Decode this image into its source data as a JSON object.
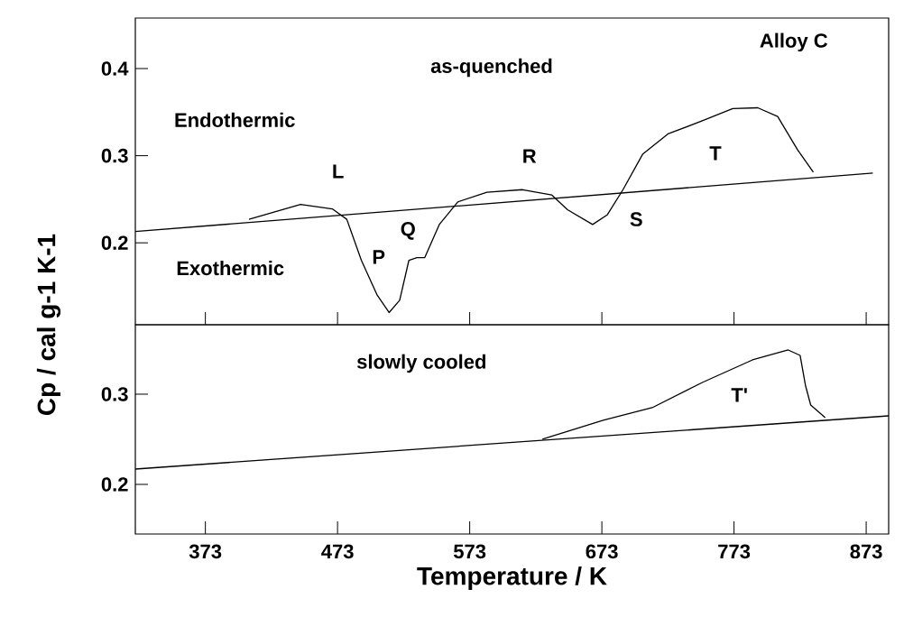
{
  "chart_data": [
    {
      "type": "line",
      "ylabel": "Cp / cal g-1 K-1",
      "xlim": [
        320,
        890
      ],
      "ylim": [
        0.106,
        0.458
      ],
      "xticks": [
        373,
        473,
        573,
        673,
        773,
        873
      ],
      "yticks": [
        0.2,
        0.3,
        0.4
      ],
      "tick_labels": "y",
      "series": [
        {
          "color": "#000000",
          "x": [
            320,
            878
          ],
          "values": [
            0.213,
            0.28
          ]
        },
        {
          "color": "#000000",
          "x": [
            406,
            445,
            469,
            480,
            491,
            503,
            512,
            520,
            527,
            533,
            539,
            550,
            564,
            586,
            613,
            635,
            647,
            666,
            677,
            689,
            704,
            723,
            749,
            772,
            791,
            806,
            821,
            833
          ],
          "values": [
            0.227,
            0.244,
            0.239,
            0.227,
            0.18,
            0.14,
            0.12,
            0.134,
            0.18,
            0.183,
            0.183,
            0.221,
            0.247,
            0.258,
            0.261,
            0.255,
            0.238,
            0.221,
            0.232,
            0.261,
            0.302,
            0.325,
            0.34,
            0.354,
            0.355,
            0.345,
            0.307,
            0.281
          ]
        }
      ],
      "annotations": [
        "Alloy C",
        "as-quenched",
        "Endothermic",
        "Exothermic",
        "L",
        "P",
        "Q",
        "R",
        "S",
        "T"
      ]
    },
    {
      "type": "line",
      "xlabel": "Temperature / K",
      "xlim": [
        320,
        890
      ],
      "ylim": [
        0.145,
        0.377
      ],
      "xticks": [
        373,
        473,
        573,
        673,
        773,
        873
      ],
      "yticks": [
        0.2,
        0.3
      ],
      "series": [
        {
          "color": "#000000",
          "x": [
            320,
            890
          ],
          "values": [
            0.217,
            0.276
          ]
        },
        {
          "color": "#000000",
          "x": [
            628,
            674,
            711,
            749,
            787,
            814,
            823,
            827,
            831,
            842
          ],
          "values": [
            0.25,
            0.271,
            0.285,
            0.313,
            0.338,
            0.349,
            0.343,
            0.31,
            0.288,
            0.274
          ]
        }
      ],
      "annotations": [
        "slowly cooled",
        "T'"
      ]
    }
  ]
}
